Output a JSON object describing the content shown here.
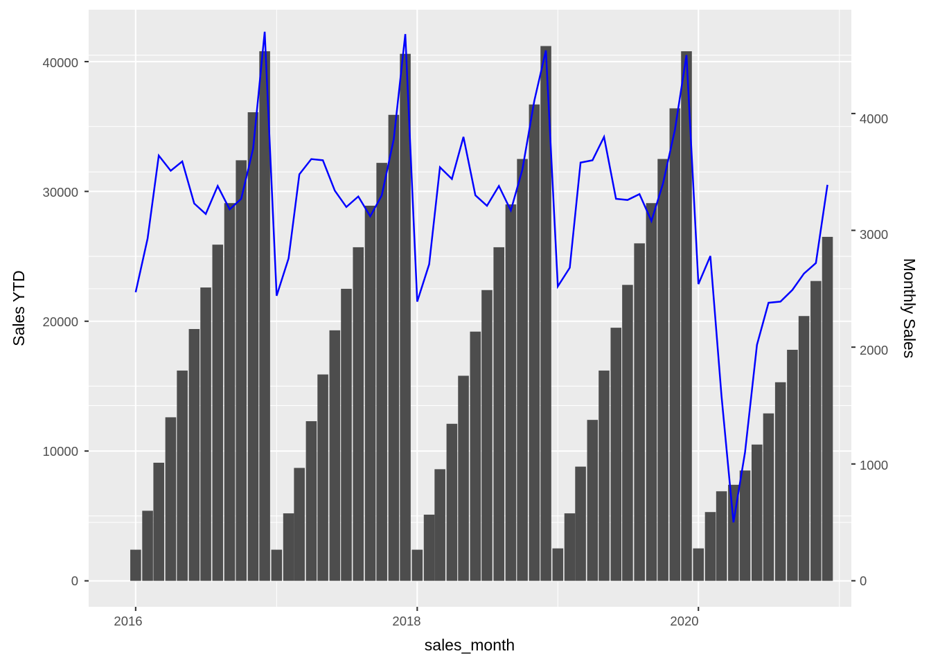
{
  "chart_data": {
    "type": "bar",
    "title": "",
    "xlabel": "sales_month",
    "ylabel": "Sales YTD",
    "y2label": "Monthly Sales",
    "x_ticks": [
      "2016",
      "2018",
      "2020"
    ],
    "y_ticks": [
      "0",
      "10000",
      "20000",
      "30000",
      "40000"
    ],
    "y2_ticks": [
      "0",
      "1000",
      "2000",
      "3000",
      "4000"
    ],
    "xlim": [
      "2015-09-01",
      "2021-02-01"
    ],
    "ylim": [
      -2000,
      44000
    ],
    "y2lim": [
      -222.9,
      4888.9
    ],
    "grid": true,
    "legend": "none",
    "months": [
      "2016-01",
      "2016-02",
      "2016-03",
      "2016-04",
      "2016-05",
      "2016-06",
      "2016-07",
      "2016-08",
      "2016-09",
      "2016-10",
      "2016-11",
      "2016-12",
      "2017-01",
      "2017-02",
      "2017-03",
      "2017-04",
      "2017-05",
      "2017-06",
      "2017-07",
      "2017-08",
      "2017-09",
      "2017-10",
      "2017-11",
      "2017-12",
      "2018-01",
      "2018-02",
      "2018-03",
      "2018-04",
      "2018-05",
      "2018-06",
      "2018-07",
      "2018-08",
      "2018-09",
      "2018-10",
      "2018-11",
      "2018-12",
      "2019-01",
      "2019-02",
      "2019-03",
      "2019-04",
      "2019-05",
      "2019-06",
      "2019-07",
      "2019-08",
      "2019-09",
      "2019-10",
      "2019-11",
      "2019-12",
      "2020-01",
      "2020-02",
      "2020-03",
      "2020-04",
      "2020-05",
      "2020-06",
      "2020-07",
      "2020-08",
      "2020-09",
      "2020-10",
      "2020-11",
      "2020-12"
    ],
    "series": [
      {
        "name": "Sales YTD",
        "type": "bar",
        "axis": "left",
        "color": "#4d4d4d",
        "values": [
          2400,
          5400,
          9100,
          12600,
          16200,
          19400,
          22600,
          25900,
          29100,
          32400,
          36100,
          40800,
          2400,
          5200,
          8700,
          12300,
          15900,
          19300,
          22500,
          25700,
          28900,
          32200,
          35900,
          40600,
          2400,
          5100,
          8600,
          12100,
          15800,
          19200,
          22400,
          25700,
          29000,
          32500,
          36700,
          41200,
          2500,
          5200,
          8800,
          12400,
          16200,
          19500,
          22800,
          26000,
          29100,
          32500,
          36400,
          40800,
          2500,
          5300,
          6900,
          7400,
          8500,
          10500,
          12900,
          15300,
          17800,
          20400,
          23100,
          26500
        ]
      },
      {
        "name": "Monthly Sales",
        "type": "line",
        "axis": "right",
        "color": "#0000ff",
        "values": [
          2470,
          2930,
          3640,
          3510,
          3590,
          3230,
          3140,
          3380,
          3180,
          3270,
          3700,
          4700,
          2440,
          2760,
          3480,
          3610,
          3600,
          3340,
          3200,
          3290,
          3120,
          3300,
          3780,
          4680,
          2390,
          2710,
          3540,
          3440,
          3800,
          3300,
          3210,
          3380,
          3170,
          3520,
          4110,
          4540,
          2520,
          2680,
          3580,
          3600,
          3800,
          3270,
          3260,
          3310,
          3080,
          3400,
          3860,
          4500,
          2540,
          2780,
          1580,
          500,
          1100,
          2020,
          2380,
          2390,
          2490,
          2630,
          2720,
          3390
        ]
      }
    ]
  }
}
